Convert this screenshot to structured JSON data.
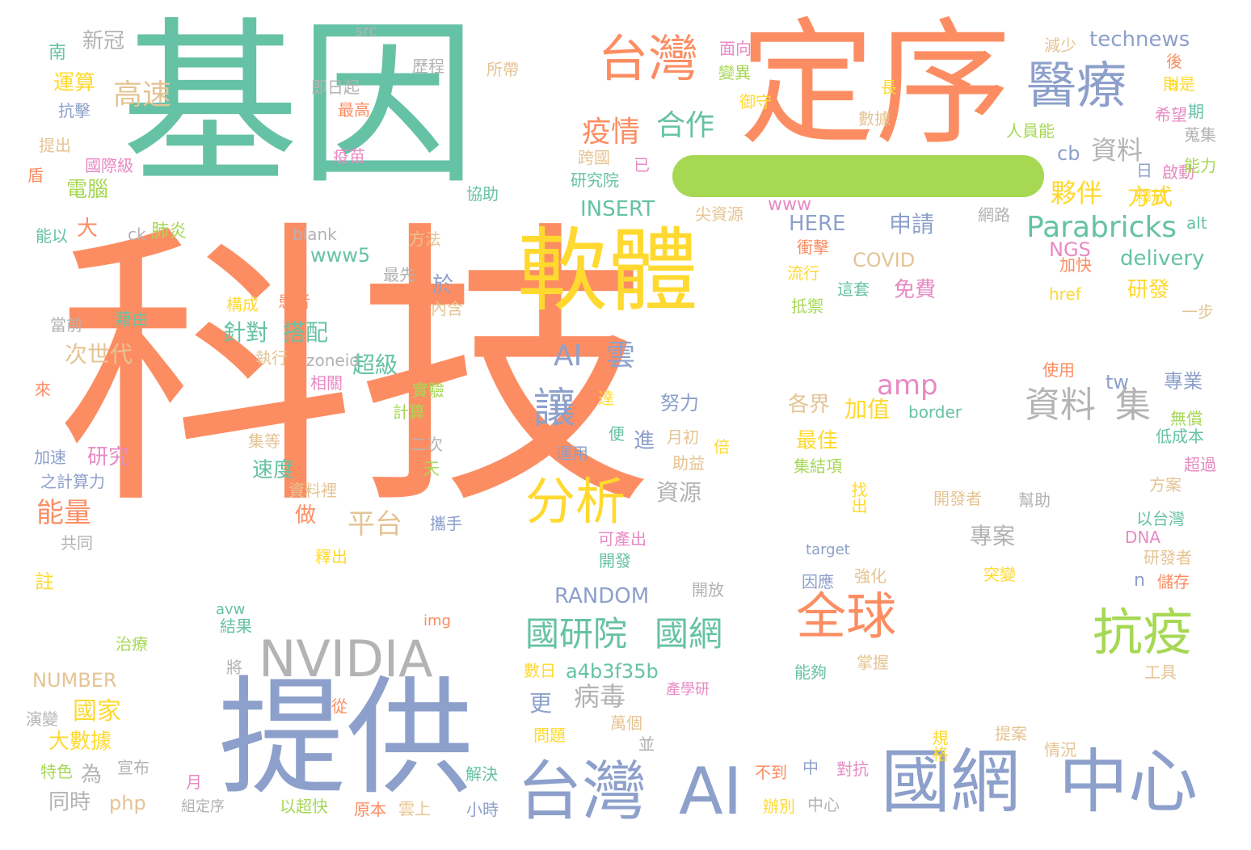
{
  "palette": {
    "green": "#66c2a5",
    "orange": "#fc8d62",
    "blue": "#8da0cb",
    "pink": "#e78ac3",
    "lime": "#a6d854",
    "yellow": "#ffd92f",
    "tan": "#e5c494",
    "gray": "#b3b3b3"
  },
  "bar_color": "#a6d854",
  "words": [
    {
      "text": "科技",
      "color": "#fc8d62"
    },
    {
      "text": "基因",
      "color": "#66c2a5"
    },
    {
      "text": "定序",
      "color": "#fc8d62"
    },
    {
      "text": "提供",
      "color": "#8da0cb"
    },
    {
      "text": "軟體",
      "color": "#ffd92f"
    },
    {
      "text": "國網",
      "color": "#8da0cb"
    },
    {
      "text": "中心",
      "color": "#8da0cb"
    },
    {
      "text": "台灣",
      "color": "#8da0cb"
    },
    {
      "text": "AI",
      "color": "#8da0cb"
    },
    {
      "text": "NVIDIA",
      "color": "#b3b3b3"
    },
    {
      "text": "台灣",
      "color": "#fc8d62"
    },
    {
      "text": "醫療",
      "color": "#8da0cb"
    },
    {
      "text": "抗疫",
      "color": "#a6d854"
    },
    {
      "text": "全球",
      "color": "#fc8d62"
    },
    {
      "text": "分析",
      "color": "#ffd92f"
    },
    {
      "text": "讓",
      "color": "#8da0cb"
    },
    {
      "text": "Parabricks",
      "color": "#66c2a5"
    },
    {
      "text": "國研院",
      "color": "#66c2a5"
    },
    {
      "text": "國網",
      "color": "#66c2a5"
    },
    {
      "text": "資料",
      "color": "#b3b3b3"
    },
    {
      "text": "集",
      "color": "#b3b3b3"
    },
    {
      "text": "AI",
      "color": "#8da0cb"
    },
    {
      "text": "雲",
      "color": "#8da0cb"
    },
    {
      "text": "疫情",
      "color": "#fc8d62"
    },
    {
      "text": "合作",
      "color": "#66c2a5"
    },
    {
      "text": "高速",
      "color": "#e5c494"
    },
    {
      "text": "平台",
      "color": "#e5c494"
    },
    {
      "text": "amp",
      "color": "#e78ac3"
    },
    {
      "text": "能量",
      "color": "#fc8d62"
    },
    {
      "text": "國家",
      "color": "#ffd92f"
    },
    {
      "text": "病毒",
      "color": "#b3b3b3"
    },
    {
      "text": "資料",
      "color": "#b3b3b3"
    },
    {
      "text": "夥伴",
      "color": "#ffd92f"
    },
    {
      "text": "方式",
      "color": "#ffd92f"
    },
    {
      "text": "technews",
      "color": "#8da0cb"
    },
    {
      "text": "新冠",
      "color": "#b3b3b3"
    },
    {
      "text": "運算",
      "color": "#ffd92f"
    },
    {
      "text": "電腦",
      "color": "#a6d854"
    },
    {
      "text": "大",
      "color": "#fc8d62"
    },
    {
      "text": "次世代",
      "color": "#e5c494"
    },
    {
      "text": "針對",
      "color": "#66c2a5"
    },
    {
      "text": "搭配",
      "color": "#66c2a5"
    },
    {
      "text": "INSERT",
      "color": "#66c2a5"
    },
    {
      "text": "HERE",
      "color": "#8da0cb"
    },
    {
      "text": "申請",
      "color": "#8da0cb"
    },
    {
      "text": "COVID",
      "color": "#e5c494"
    },
    {
      "text": "delivery",
      "color": "#66c2a5"
    },
    {
      "text": "NGS",
      "color": "#e78ac3"
    },
    {
      "text": "cb",
      "color": "#8da0cb"
    },
    {
      "text": "www5",
      "color": "#66c2a5"
    },
    {
      "text": "www",
      "color": "#e78ac3"
    },
    {
      "text": "免費",
      "color": "#e78ac3"
    },
    {
      "text": "研發",
      "color": "#ffd92f"
    },
    {
      "text": "於",
      "color": "#8da0cb"
    },
    {
      "text": "超級",
      "color": "#66c2a5"
    },
    {
      "text": "各界",
      "color": "#e5c494"
    },
    {
      "text": "加值",
      "color": "#ffd92f"
    },
    {
      "text": "專業",
      "color": "#8da0cb"
    },
    {
      "text": "努力",
      "color": "#8da0cb"
    },
    {
      "text": "最佳",
      "color": "#ffd92f"
    },
    {
      "text": "進",
      "color": "#8da0cb"
    },
    {
      "text": "研究",
      "color": "#e78ac3"
    },
    {
      "text": "速度",
      "color": "#66c2a5"
    },
    {
      "text": "資源",
      "color": "#b3b3b3"
    },
    {
      "text": "做",
      "color": "#fc8d62"
    },
    {
      "text": "專案",
      "color": "#b3b3b3"
    },
    {
      "text": "RANDOM",
      "color": "#8da0cb"
    },
    {
      "text": "NUMBER",
      "color": "#e5c494"
    },
    {
      "text": "a4b3f35b",
      "color": "#66c2a5"
    },
    {
      "text": "大數據",
      "color": "#ffd92f"
    },
    {
      "text": "同時",
      "color": "#b3b3b3"
    },
    {
      "text": "php",
      "color": "#e5c494"
    },
    {
      "text": "更",
      "color": "#8da0cb"
    },
    {
      "text": "tw",
      "color": "#8da0cb"
    },
    {
      "text": "n",
      "color": "#8da0cb"
    },
    {
      "text": "為",
      "color": "#b3b3b3"
    },
    {
      "text": "src",
      "color": "#b3b3b3"
    },
    {
      "text": "歷程",
      "color": "#b3b3b3"
    },
    {
      "text": "所帶",
      "color": "#e5c494"
    },
    {
      "text": "面向",
      "color": "#e78ac3"
    },
    {
      "text": "變異",
      "color": "#a6d854"
    },
    {
      "text": "減少",
      "color": "#e5c494"
    },
    {
      "text": "a",
      "color": "#ffd92f"
    },
    {
      "text": "南",
      "color": "#66c2a5"
    },
    {
      "text": "即日起",
      "color": "#b3b3b3"
    },
    {
      "text": "最高",
      "color": "#fc8d62"
    },
    {
      "text": "御守",
      "color": "#ffd92f"
    },
    {
      "text": "長",
      "color": "#ffd92f"
    },
    {
      "text": "後",
      "color": "#fc8d62"
    },
    {
      "text": "則是",
      "color": "#ffd92f"
    },
    {
      "text": "抗擊",
      "color": "#8da0cb"
    },
    {
      "text": "數據",
      "color": "#e5c494"
    },
    {
      "text": "希望",
      "color": "#e78ac3"
    },
    {
      "text": "期",
      "color": "#66c2a5"
    },
    {
      "text": "提出",
      "color": "#e5c494"
    },
    {
      "text": "疫苗",
      "color": "#e78ac3"
    },
    {
      "text": "人員能",
      "color": "#a6d854"
    },
    {
      "text": "蒐集",
      "color": "#b3b3b3"
    },
    {
      "text": "國際級",
      "color": "#e78ac3"
    },
    {
      "text": "跨國",
      "color": "#e5c494"
    },
    {
      "text": "已",
      "color": "#e78ac3"
    },
    {
      "text": "日",
      "color": "#8da0cb"
    },
    {
      "text": "啟動",
      "color": "#e78ac3"
    },
    {
      "text": "能力",
      "color": "#a6d854"
    },
    {
      "text": "盾",
      "color": "#fc8d62"
    },
    {
      "text": "研究院",
      "color": "#66c2a5"
    },
    {
      "text": "協助",
      "color": "#66c2a5"
    },
    {
      "text": "釋放",
      "color": "#ffd92f"
    },
    {
      "text": "尖資源",
      "color": "#e5c494"
    },
    {
      "text": "網路",
      "color": "#b3b3b3"
    },
    {
      "text": "alt",
      "color": "#66c2a5"
    },
    {
      "text": "能以",
      "color": "#66c2a5"
    },
    {
      "text": "ck",
      "color": "#b3b3b3"
    },
    {
      "text": "肺炎",
      "color": "#a6d854"
    },
    {
      "text": "blank",
      "color": "#b3b3b3"
    },
    {
      "text": "方法",
      "color": "#e5c494"
    },
    {
      "text": "衝擊",
      "color": "#fc8d62"
    },
    {
      "text": "加快",
      "color": "#fc8d62"
    },
    {
      "text": "最先",
      "color": "#b3b3b3"
    },
    {
      "text": "流行",
      "color": "#ffd92f"
    },
    {
      "text": "這套",
      "color": "#66c2a5"
    },
    {
      "text": "href",
      "color": "#ffd92f"
    },
    {
      "text": "構成",
      "color": "#ffd92f"
    },
    {
      "text": "患者",
      "color": "#fc8d62"
    },
    {
      "text": "內含",
      "color": "#e5c494"
    },
    {
      "text": "抵禦",
      "color": "#a6d854"
    },
    {
      "text": "一步",
      "color": "#e5c494"
    },
    {
      "text": "當前",
      "color": "#b3b3b3"
    },
    {
      "text": "藉由",
      "color": "#66c2a5"
    },
    {
      "text": "執行",
      "color": "#e5c494"
    },
    {
      "text": "zoneid",
      "color": "#b3b3b3"
    },
    {
      "text": "使用",
      "color": "#fc8d62"
    },
    {
      "text": "來",
      "color": "#fc8d62"
    },
    {
      "text": "相關",
      "color": "#e78ac3"
    },
    {
      "text": "實驗",
      "color": "#a6d854"
    },
    {
      "text": "達",
      "color": "#ffd92f"
    },
    {
      "text": "計算",
      "color": "#a6d854"
    },
    {
      "text": "border",
      "color": "#66c2a5"
    },
    {
      "text": "無償",
      "color": "#a6d854"
    },
    {
      "text": "集等",
      "color": "#e5c494"
    },
    {
      "text": "二次",
      "color": "#b3b3b3"
    },
    {
      "text": "便",
      "color": "#66c2a5"
    },
    {
      "text": "月初",
      "color": "#e5c494"
    },
    {
      "text": "倍",
      "color": "#ffd92f"
    },
    {
      "text": "低成本",
      "color": "#66c2a5"
    },
    {
      "text": "加速",
      "color": "#8da0cb"
    },
    {
      "text": "天",
      "color": "#a6d854"
    },
    {
      "text": "運用",
      "color": "#8da0cb"
    },
    {
      "text": "助益",
      "color": "#e5c494"
    },
    {
      "text": "集結項",
      "color": "#a6d854"
    },
    {
      "text": "超過",
      "color": "#e78ac3"
    },
    {
      "text": "之計算力",
      "color": "#8da0cb"
    },
    {
      "text": "資料裡",
      "color": "#e5c494"
    },
    {
      "text": "找出",
      "color": "#ffd92f"
    },
    {
      "text": "方案",
      "color": "#e5c494"
    },
    {
      "text": "開發者",
      "color": "#e5c494"
    },
    {
      "text": "幫助",
      "color": "#b3b3b3"
    },
    {
      "text": "攜手",
      "color": "#8da0cb"
    },
    {
      "text": "可產出",
      "color": "#e78ac3"
    },
    {
      "text": "以台灣",
      "color": "#66c2a5"
    },
    {
      "text": "共同",
      "color": "#b3b3b3"
    },
    {
      "text": "DNA",
      "color": "#e78ac3"
    },
    {
      "text": "開發",
      "color": "#66c2a5"
    },
    {
      "text": "target",
      "color": "#8da0cb"
    },
    {
      "text": "釋出",
      "color": "#ffd92f"
    },
    {
      "text": "研發者",
      "color": "#e5c494"
    },
    {
      "text": "註",
      "color": "#ffd92f"
    },
    {
      "text": "因應",
      "color": "#8da0cb"
    },
    {
      "text": "強化",
      "color": "#e5c494"
    },
    {
      "text": "突變",
      "color": "#ffd92f"
    },
    {
      "text": "儲存",
      "color": "#fc8d62"
    },
    {
      "text": "開放",
      "color": "#b3b3b3"
    },
    {
      "text": "avw",
      "color": "#66c2a5"
    },
    {
      "text": "結果",
      "color": "#66c2a5"
    },
    {
      "text": "img",
      "color": "#fc8d62"
    },
    {
      "text": "治療",
      "color": "#a6d854"
    },
    {
      "text": "將",
      "color": "#b3b3b3"
    },
    {
      "text": "數日",
      "color": "#ffd92f"
    },
    {
      "text": "能夠",
      "color": "#66c2a5"
    },
    {
      "text": "掌握",
      "color": "#e5c494"
    },
    {
      "text": "工具",
      "color": "#e5c494"
    },
    {
      "text": "產學研",
      "color": "#e78ac3"
    },
    {
      "text": "演變",
      "color": "#b3b3b3"
    },
    {
      "text": "從",
      "color": "#fc8d62"
    },
    {
      "text": "萬個",
      "color": "#e5c494"
    },
    {
      "text": "問題",
      "color": "#ffd92f"
    },
    {
      "text": "並",
      "color": "#b3b3b3"
    },
    {
      "text": "規格",
      "color": "#ffd92f"
    },
    {
      "text": "提案",
      "color": "#e5c494"
    },
    {
      "text": "情況",
      "color": "#e5c494"
    },
    {
      "text": "特色",
      "color": "#a6d854"
    },
    {
      "text": "宣布",
      "color": "#b3b3b3"
    },
    {
      "text": "解決",
      "color": "#66c2a5"
    },
    {
      "text": "不到",
      "color": "#fc8d62"
    },
    {
      "text": "中",
      "color": "#8da0cb"
    },
    {
      "text": "對抗",
      "color": "#e78ac3"
    },
    {
      "text": "月",
      "color": "#e78ac3"
    },
    {
      "text": "組定序",
      "color": "#b3b3b3"
    },
    {
      "text": "以超快",
      "color": "#a6d854"
    },
    {
      "text": "原本",
      "color": "#fc8d62"
    },
    {
      "text": "雲上",
      "color": "#e5c494"
    },
    {
      "text": "小時",
      "color": "#8da0cb"
    },
    {
      "text": "辦別",
      "color": "#ffd92f"
    },
    {
      "text": "中心",
      "color": "#b3b3b3"
    }
  ]
}
